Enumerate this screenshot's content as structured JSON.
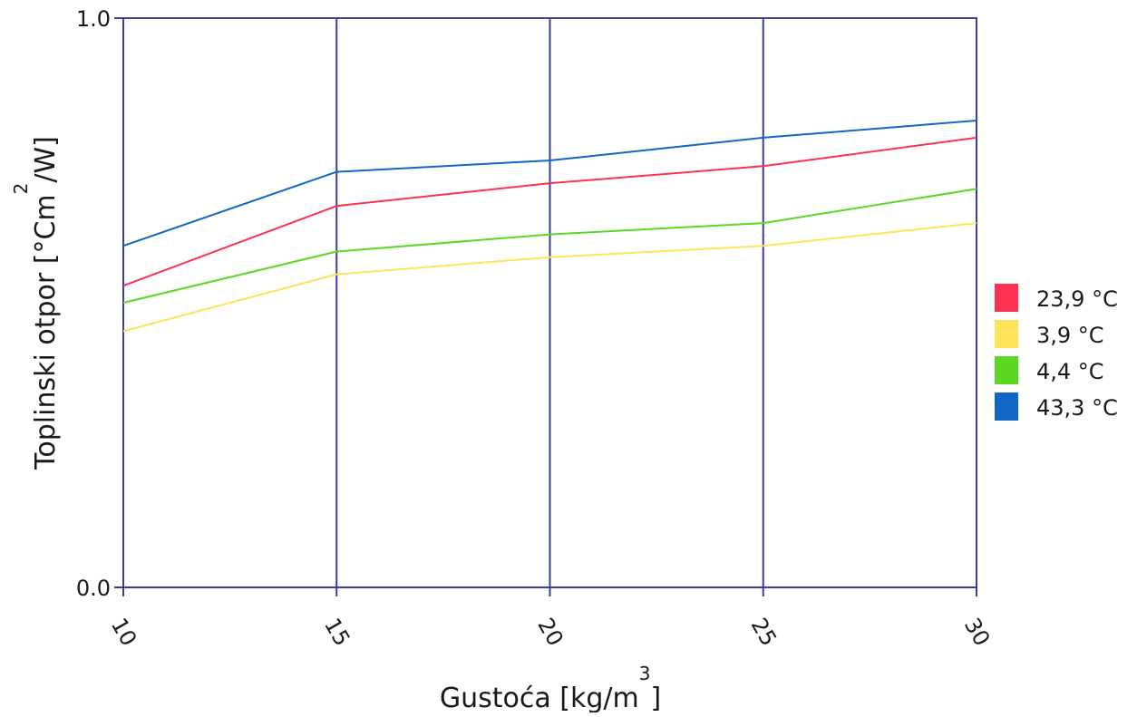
{
  "chart_data": {
    "type": "line",
    "title": "",
    "x": [
      10,
      15,
      20,
      25,
      30
    ],
    "x_tick_labels": [
      "10",
      "15",
      "20",
      "25",
      "30"
    ],
    "y_tick_labels": [
      "0.0",
      "1.0"
    ],
    "xlabel": {
      "main": "Gustoća [kg/m",
      "sup": "3",
      "tail": "]"
    },
    "ylabel": {
      "main": "Toplinski otpor [°Cm",
      "sup": "2",
      "tail": "/W]"
    },
    "xlim": [
      10,
      30
    ],
    "ylim": [
      0,
      1
    ],
    "grid": "vertical",
    "legend_position": "right",
    "series": [
      {
        "name": "23,9 °C",
        "color": "#ff3050",
        "values": [
          0.53,
          0.67,
          0.71,
          0.74,
          0.79
        ]
      },
      {
        "name": "3,9 °C",
        "color": "#ffe45a",
        "values": [
          0.45,
          0.55,
          0.58,
          0.6,
          0.64
        ]
      },
      {
        "name": "4,4 °C",
        "color": "#5ad823",
        "values": [
          0.5,
          0.59,
          0.62,
          0.64,
          0.7
        ]
      },
      {
        "name": "43,3 °C",
        "color": "#1166c6",
        "values": [
          0.6,
          0.73,
          0.75,
          0.79,
          0.82
        ]
      }
    ]
  }
}
